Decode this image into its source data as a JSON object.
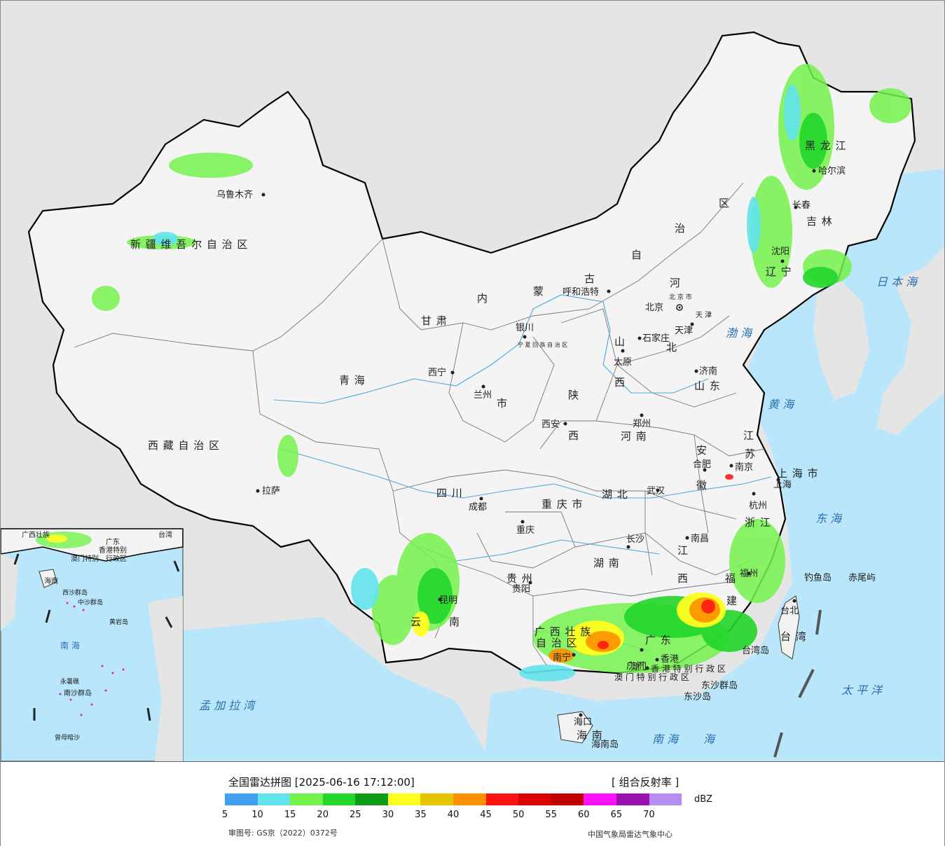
{
  "map": {
    "provinces": [
      "新 疆 维 吾 尔 自 治 区",
      "西 藏 自 治 区",
      "青 海",
      "甘 肃",
      "内",
      "蒙",
      "古",
      "自",
      "治",
      "区",
      "黑 龙 江",
      "吉 林",
      "辽 宁",
      "河",
      "北",
      "山",
      "西",
      "山 东",
      "河 南",
      "陕",
      "西",
      "四 川",
      "重 庆 市",
      "湖 北",
      "湖 南",
      "江",
      "西",
      "安",
      "徽",
      "江",
      "苏",
      "浙 江",
      "上 海 市",
      "福",
      "建",
      "广 东",
      "广 西 壮 族",
      "自 治 区",
      "贵 州",
      "云",
      "南",
      "海 南",
      "台 湾",
      "宁 夏 回 族 自 治 区",
      "北 京 市",
      "天 津",
      "香 港 特 别 行 政 区",
      "澳 门 特 别 行 政 区"
    ],
    "cities": [
      "乌鲁木齐",
      "拉萨",
      "西宁",
      "兰州",
      "银川",
      "呼和浩特",
      "北京",
      "天津",
      "石家庄",
      "太原",
      "济南",
      "郑州",
      "西安",
      "成都",
      "重庆",
      "武汉",
      "合肥",
      "南京",
      "上海",
      "杭州",
      "长沙",
      "南昌",
      "福州",
      "贵阳",
      "昆明",
      "南宁",
      "广州",
      "香港",
      "澳门",
      "海口",
      "台北",
      "哈尔滨",
      "长春",
      "沈阳",
      "市"
    ],
    "seas": [
      "日 本 海",
      "渤 海",
      "黄 海",
      "东 海",
      "南 海",
      "海",
      "太 平 洋",
      "孟 加 拉 湾",
      "南 海"
    ],
    "islands": [
      "钓鱼岛",
      "赤尾屿",
      "台湾岛",
      "东沙群岛",
      "东沙岛",
      "海南岛"
    ],
    "inset_labels": [
      "广西壮族",
      "广东",
      "台湾",
      "香港特别",
      "澳门特别",
      "行政区",
      "海南",
      "西沙群岛",
      "中沙群岛",
      "黄岩岛",
      "南 海",
      "永暑礁",
      "南沙群岛",
      "曾母暗沙"
    ]
  },
  "legend": {
    "title": "全国雷达拼图 [2025-06-16 17:12:00]",
    "product": "[ 组合反射率 ]",
    "unit": "dBZ",
    "ticks": [
      "5",
      "10",
      "15",
      "20",
      "25",
      "30",
      "35",
      "40",
      "45",
      "50",
      "55",
      "60",
      "65",
      "70"
    ],
    "colors": [
      "#3fa0f2",
      "#62e3ed",
      "#74f24c",
      "#22d62a",
      "#0f9b17",
      "#ffff20",
      "#e6c400",
      "#ff9000",
      "#ff1212",
      "#d80000",
      "#c00000",
      "#ff10ff",
      "#9a10b0",
      "#b48ef0"
    ],
    "review_no": "审图号: GS京（2022）0372号",
    "source": "中国气象局雷达气象中心"
  }
}
